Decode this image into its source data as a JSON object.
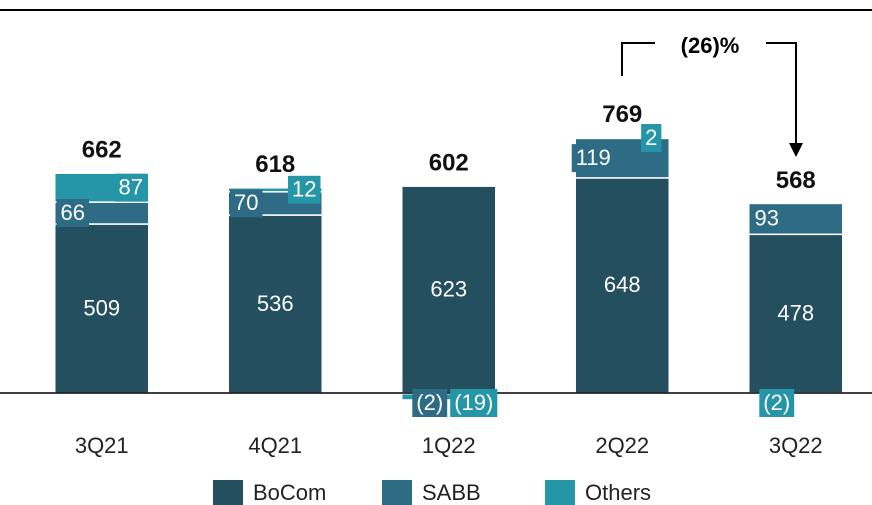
{
  "chart_data": {
    "type": "stacked_bar",
    "categories": [
      "3Q21",
      "4Q21",
      "1Q22",
      "2Q22",
      "3Q22"
    ],
    "series": [
      {
        "name": "BoCom",
        "color": "#234f5e",
        "values": [
          509,
          536,
          623,
          648,
          478
        ]
      },
      {
        "name": "SABB",
        "color": "#2e6b85",
        "values": [
          66,
          70,
          -2,
          119,
          93
        ],
        "value_labels": [
          "66",
          "70",
          "(2)",
          "119",
          "93"
        ]
      },
      {
        "name": "Others",
        "color": "#2596a8",
        "values": [
          87,
          12,
          -19,
          2,
          -2
        ],
        "value_labels": [
          "87",
          "12",
          "(19)",
          "2",
          "(2)"
        ]
      }
    ],
    "totals": [
      662,
      618,
      602,
      769,
      568
    ],
    "annotation": "(26)%",
    "legend": "bottom"
  }
}
